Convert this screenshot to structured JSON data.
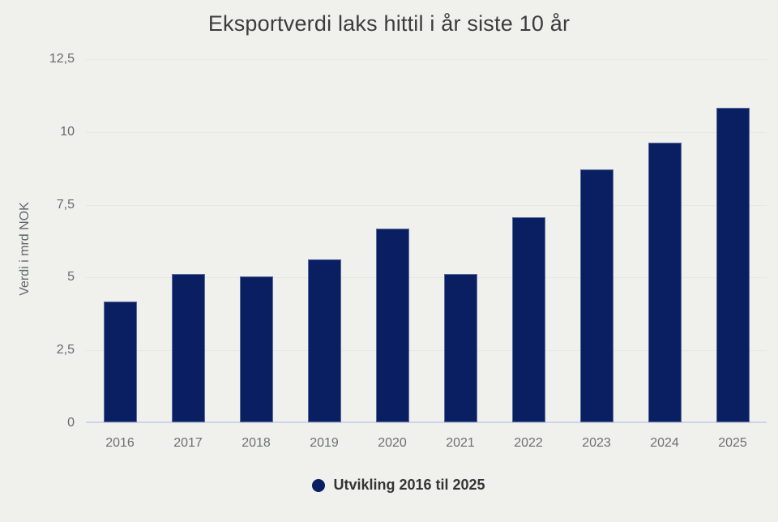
{
  "chart_data": {
    "type": "bar",
    "title": "Eksportverdi laks hittil i år siste 10 år",
    "xlabel": "",
    "ylabel": "Verdi i mrd NOK",
    "categories": [
      "2016",
      "2017",
      "2018",
      "2019",
      "2020",
      "2021",
      "2022",
      "2023",
      "2024",
      "2025"
    ],
    "values": [
      4.15,
      5.1,
      5.0,
      5.6,
      6.65,
      5.1,
      7.05,
      8.7,
      9.6,
      10.8
    ],
    "ylim": [
      0,
      12.5
    ],
    "yticks": [
      0,
      2.5,
      5,
      7.5,
      10,
      12.5
    ],
    "ytick_labels": [
      "0",
      "2,5",
      "5",
      "7,5",
      "10",
      "12,5"
    ],
    "grid": true,
    "legend_position": "bottom",
    "legend": {
      "marker": "circle-icon",
      "label": "Utvikling 2016 til 2025"
    }
  },
  "colors": {
    "bar": "#0a1f61",
    "background": "#f0f1ed",
    "gridline": "#e6e8e3",
    "zero_line": "#ccd4ea",
    "title_text": "#3c3c3c",
    "axis_text": "#67696c",
    "legend_text": "#343434"
  }
}
